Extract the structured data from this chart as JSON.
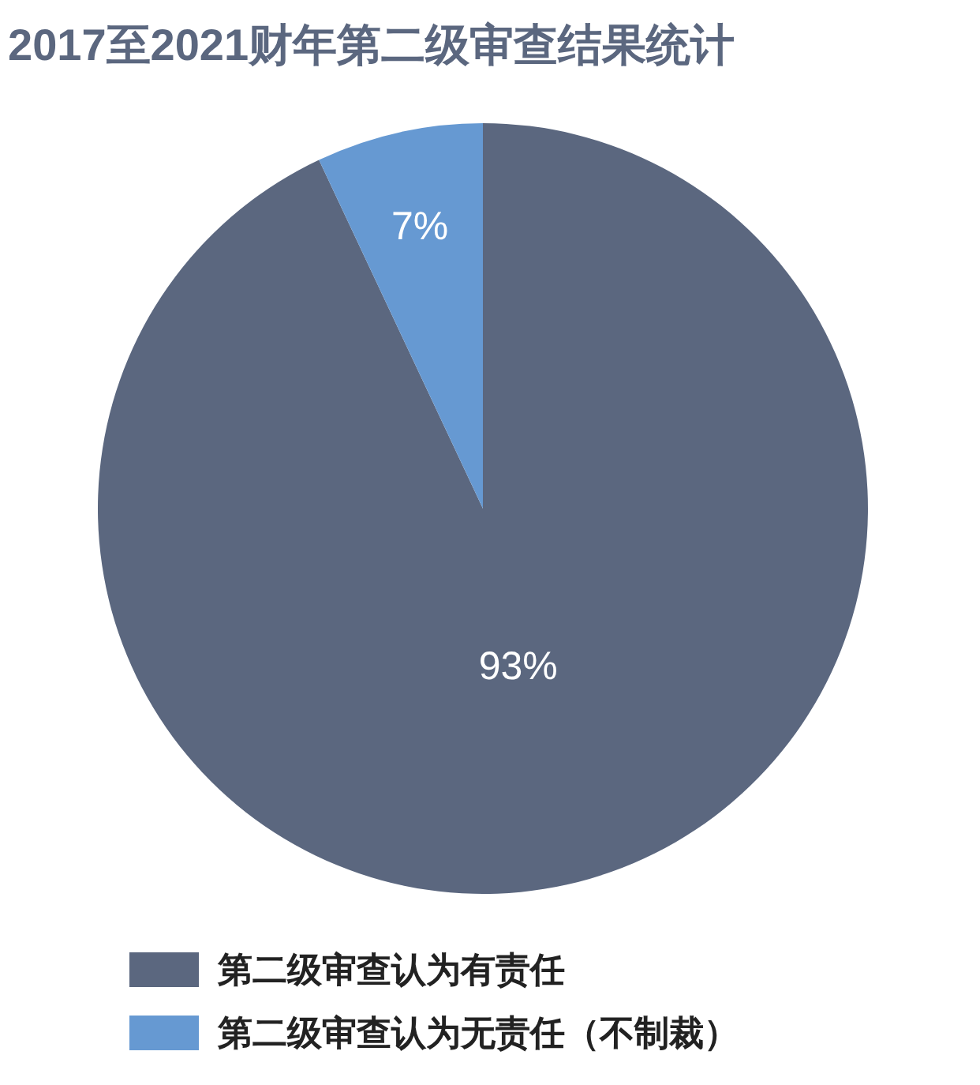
{
  "chart_data": {
    "type": "pie",
    "title": "2017至2021财年第二级审查结果统计",
    "categories": [
      "第二级审查认为有责任",
      "第二级审查认为无责任（不制裁）"
    ],
    "values": [
      93,
      7
    ],
    "colors": [
      "#5b677f",
      "#6699d2"
    ],
    "value_labels": [
      "93%",
      "7%"
    ],
    "legend": "bottom"
  }
}
